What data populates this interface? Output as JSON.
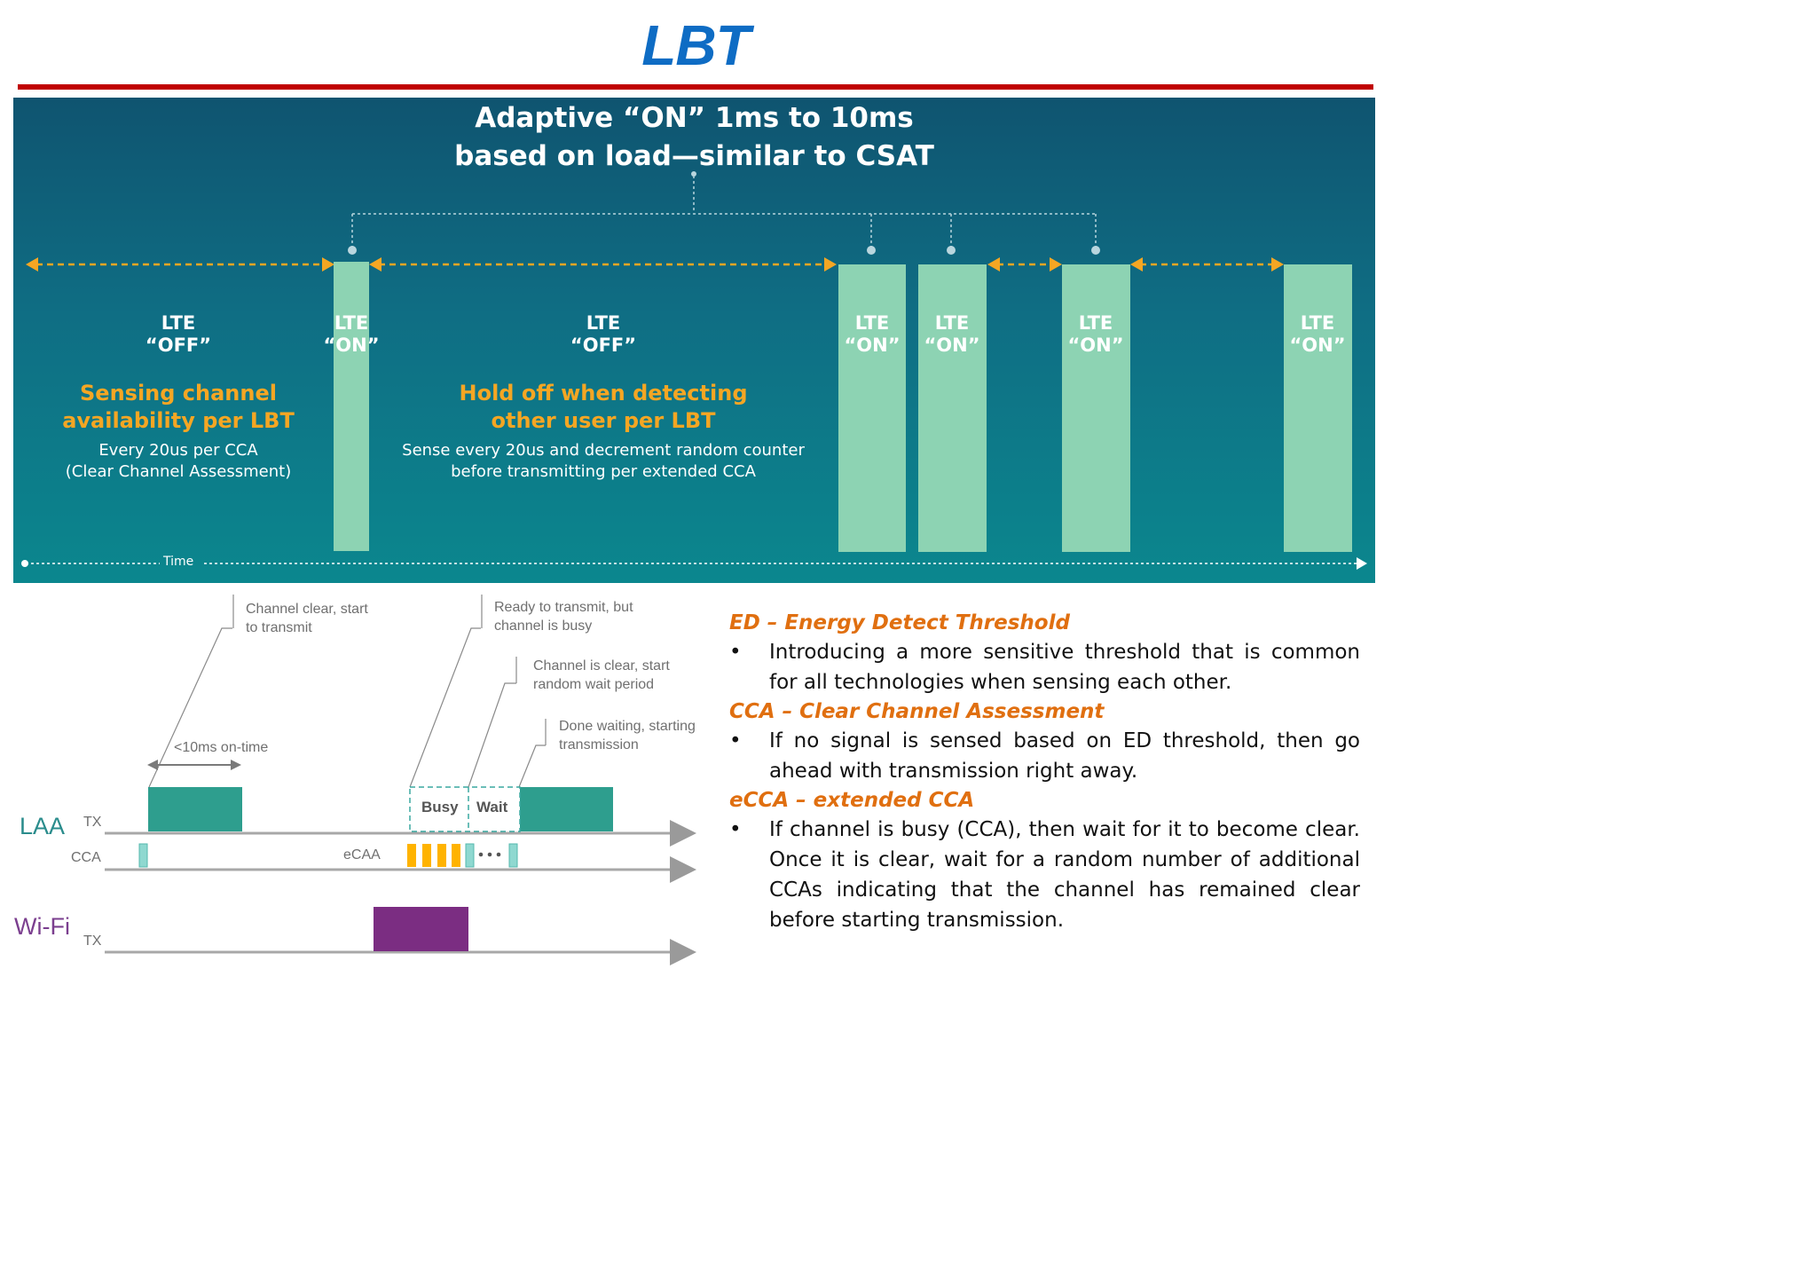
{
  "title": "LBT",
  "top_panel": {
    "adaptive_line1": "Adaptive “ON”  1ms to 10ms",
    "adaptive_line2": "based on load—similar to CSAT",
    "lte_off_1": {
      "line1": "LTE",
      "line2": "“OFF”",
      "head1": "Sensing channel",
      "head2": "availability per LBT",
      "desc1": "Every 20us per CCA",
      "desc2": "(Clear Channel Assessment)"
    },
    "lte_off_2": {
      "line1": "LTE",
      "line2": "“OFF”",
      "head1": "Hold off when detecting",
      "head2": "other user per LBT",
      "desc1": "Sense every 20us and decrement random counter",
      "desc2": "before transmitting per extended CCA"
    },
    "lte_on_line1": "LTE",
    "lte_on_line2": "“ON”",
    "time_label": "Time",
    "colors": {
      "panel_top": "#0f5470",
      "panel_bottom": "#0b878e",
      "on_bar": "#8dd3b3",
      "arrow": "#f5a623"
    }
  },
  "timing_diagram": {
    "callouts": {
      "channel_clear_1": "Channel clear, start",
      "channel_clear_2": "to transmit",
      "ready_1": "Ready to transmit, but",
      "ready_2": "channel is busy",
      "clear_wait_1": "Channel is clear, start",
      "clear_wait_2": "random wait period",
      "done_1": "Done waiting, starting",
      "done_2": "transmission"
    },
    "on_time": "<10ms on-time",
    "laa": "LAA",
    "tx": "TX",
    "cca": "CCA",
    "ecaa": "eCAA",
    "busy": "Busy",
    "wait": "Wait",
    "wifi": "Wi-Fi",
    "wifi_tx": "TX",
    "colors": {
      "laa_tx": "#2e9e8e",
      "cca_pulse": "#8fd8d0",
      "ecaa_pulse": "#ffb300",
      "wifi_tx": "#7b2d82",
      "laa_label": "#2a8c8c",
      "wifi_label": "#7b3f8f"
    }
  },
  "notes": [
    {
      "heading": "ED – Energy Detect Threshold",
      "bullet": "•",
      "text": "Introducing a more sensitive threshold that is common for all technologies when sensing each other."
    },
    {
      "heading": "CCA – Clear Channel Assessment",
      "bullet": "•",
      "text": "If no signal is sensed based on ED threshold, then go ahead with transmission right away."
    },
    {
      "heading": "eCCA – extended CCA",
      "bullet": "•",
      "text": "If channel is busy (CCA), then wait for it to become clear. Once it is clear, wait for a random number of additional CCAs indicating that the channel has remained clear before starting transmission."
    }
  ]
}
